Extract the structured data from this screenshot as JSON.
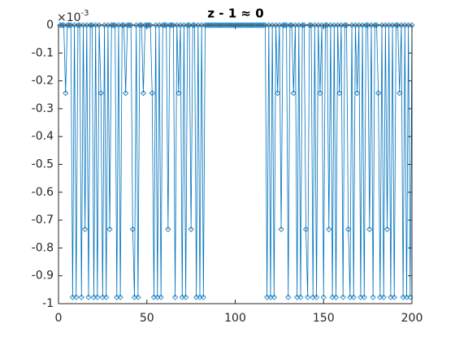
{
  "chart_data": {
    "type": "line",
    "title": "z - 1 ≈ 0",
    "y_exponent": {
      "base": "×10",
      "power": "-3"
    },
    "xlim": [
      0,
      200
    ],
    "xticks": [
      0,
      50,
      100,
      150,
      200
    ],
    "ylim": [
      -1,
      0
    ],
    "yticks": [
      0,
      -0.1,
      -0.2,
      -0.3,
      -0.4,
      -0.5,
      -0.6,
      -0.7,
      -0.8,
      -0.9,
      -1
    ],
    "grid": false,
    "marker": "diamond",
    "x": [
      1,
      2,
      3,
      4,
      5,
      6,
      7,
      8,
      9,
      10,
      11,
      12,
      13,
      14,
      15,
      16,
      17,
      18,
      19,
      20,
      21,
      22,
      23,
      24,
      25,
      26,
      27,
      28,
      29,
      30,
      31,
      32,
      33,
      34,
      35,
      36,
      37,
      38,
      39,
      40,
      41,
      42,
      43,
      44,
      45,
      46,
      47,
      48,
      49,
      50,
      51,
      52,
      53,
      54,
      55,
      56,
      57,
      58,
      59,
      60,
      61,
      62,
      63,
      64,
      65,
      66,
      67,
      68,
      69,
      70,
      71,
      72,
      73,
      74,
      75,
      76,
      77,
      78,
      79,
      80,
      81,
      82,
      83,
      84,
      85,
      86,
      87,
      88,
      89,
      90,
      91,
      92,
      93,
      94,
      95,
      96,
      97,
      98,
      99,
      100,
      101,
      102,
      103,
      104,
      105,
      106,
      107,
      108,
      109,
      110,
      111,
      112,
      113,
      114,
      115,
      116,
      117,
      118,
      119,
      120,
      121,
      122,
      123,
      124,
      125,
      126,
      127,
      128,
      129,
      130,
      131,
      132,
      133,
      134,
      135,
      136,
      137,
      138,
      139,
      140,
      141,
      142,
      143,
      144,
      145,
      146,
      147,
      148,
      149,
      150,
      151,
      152,
      153,
      154,
      155,
      156,
      157,
      158,
      159,
      160,
      161,
      162,
      163,
      164,
      165,
      166,
      167,
      168,
      169,
      170,
      171,
      172,
      173,
      174,
      175,
      176,
      177,
      178,
      179,
      180,
      181,
      182,
      183,
      184,
      185,
      186,
      187,
      188,
      189,
      190,
      191,
      192,
      193,
      194,
      195,
      196,
      197,
      198,
      199,
      200
    ],
    "series": [
      {
        "color": "#0072bd",
        "values": [
          0,
          0,
          0,
          -0.244,
          0,
          0,
          0,
          -0.977,
          0,
          -0.977,
          0,
          0,
          -0.977,
          0,
          -0.733,
          0,
          -0.977,
          0,
          0,
          -0.977,
          0,
          -0.977,
          0,
          -0.244,
          -0.977,
          0,
          -0.977,
          0,
          -0.733,
          0,
          0,
          0,
          -0.977,
          0,
          -0.977,
          0,
          0,
          -0.244,
          0,
          0,
          0,
          -0.733,
          -0.977,
          0,
          -0.977,
          0,
          0,
          -0.244,
          0,
          0,
          0,
          0,
          -0.244,
          -0.977,
          0,
          -0.977,
          0,
          -0.977,
          0,
          0,
          0,
          -0.733,
          0,
          0,
          0,
          -0.977,
          0,
          -0.244,
          0,
          -0.977,
          0,
          -0.977,
          0,
          0,
          -0.733,
          0,
          0,
          -0.977,
          0,
          -0.977,
          0,
          -0.977,
          0,
          0,
          0,
          0,
          0,
          0,
          0,
          0,
          0,
          0,
          0,
          0,
          0,
          0,
          0,
          0,
          0,
          0,
          0,
          0,
          0,
          0,
          0,
          0,
          0,
          0,
          0,
          0,
          0,
          0,
          0,
          0,
          0,
          0,
          0,
          -0.977,
          0,
          -0.977,
          0,
          -0.977,
          0,
          -0.244,
          0,
          -0.733,
          0,
          0,
          0,
          -0.977,
          0,
          0,
          -0.244,
          0,
          -0.977,
          0,
          -0.977,
          0,
          0,
          -0.733,
          -0.977,
          0,
          0,
          -0.977,
          0,
          -0.977,
          0,
          -0.244,
          0,
          -0.977,
          0,
          0,
          -0.733,
          0,
          -0.977,
          0,
          -0.977,
          0,
          -0.244,
          0,
          -0.977,
          0,
          0,
          -0.733,
          -0.977,
          0,
          -0.977,
          0,
          -0.244,
          0,
          -0.977,
          0,
          -0.977,
          0,
          0,
          -0.733,
          0,
          -0.977,
          0,
          0,
          -0.244,
          -0.977,
          0,
          -0.977,
          0,
          -0.733,
          0,
          -0.977,
          0,
          -0.977,
          0,
          0,
          -0.244,
          0,
          -0.977,
          0,
          -0.977,
          0,
          -0.977,
          0
        ]
      }
    ]
  }
}
